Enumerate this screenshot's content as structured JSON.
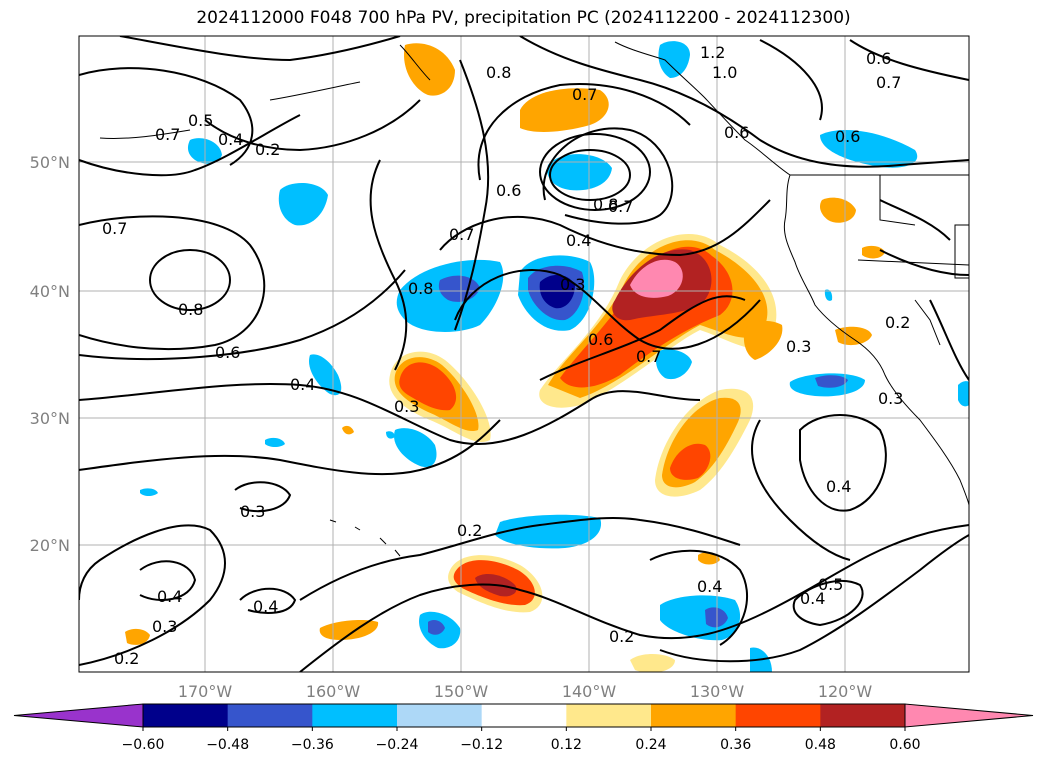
{
  "title": "2024112000 F048 700 hPa PV, precipitation PC (2024112200 - 2024112300)",
  "latitude_ticks": [
    "50°N",
    "40°N",
    "30°N",
    "20°N"
  ],
  "longitude_ticks": [
    "170°W",
    "160°W",
    "150°W",
    "140°W",
    "130°W",
    "120°W"
  ],
  "colorbar": {
    "colors": [
      "#9933cc",
      "#00008b",
      "#3655cc",
      "#00bfff",
      "#add8f7",
      "#ffffff",
      "#ffe88c",
      "#ffa500",
      "#ff4500",
      "#b22222",
      "#ff88b0"
    ],
    "tick_labels": [
      "-0.60",
      "-0.48",
      "-0.36",
      "-0.24",
      "-0.12",
      "0.12",
      "0.24",
      "0.36",
      "0.48",
      "0.60"
    ]
  },
  "contour_labels": [
    "1.2",
    "1.0",
    "0.6",
    "0.7",
    "0.8",
    "0.7",
    "0.7",
    "0.5",
    "0.4",
    "0.2",
    "0.6",
    "0.6",
    "0.7",
    "0.8",
    "0.7",
    "0.4",
    "0.7",
    "0.8",
    "0.8",
    "0.3",
    "0.6",
    "0.6",
    "0.4",
    "0.3",
    "0.7",
    "0.3",
    "0.3",
    "0.4",
    "0.3",
    "0.2",
    "0.4",
    "0.4",
    "0.3",
    "0.2",
    "0.4",
    "0.2",
    "0.5",
    "0.4",
    "0.2",
    "0.6"
  ]
}
